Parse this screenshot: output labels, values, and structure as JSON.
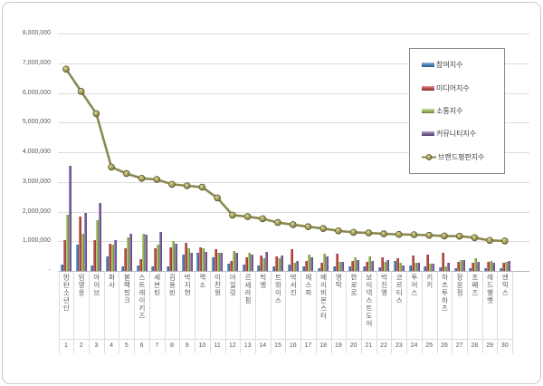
{
  "window": {
    "background": "#ffffff",
    "frame_border_color": "#c9c9c9"
  },
  "chart_data": {
    "type": "bar",
    "subtype": "grouped-bars-with-line-overlay",
    "title": "",
    "grid": true,
    "legend_position": "top-right",
    "categories": [
      "방탄소년단",
      "임영웅",
      "아이브",
      "화사",
      "블랙핑크",
      "스트레이키즈",
      "세븐틴",
      "김용빈",
      "박지현",
      "엑소",
      "이찬원",
      "아일릿",
      "르세라핌",
      "빅뱅",
      "트와이스",
      "박서진",
      "에스파",
      "베이비몬스터",
      "영탁",
      "한로로",
      "보이넥스트도어",
      "박진영",
      "코르티스",
      "투어스",
      "키키",
      "하츠투하츠",
      "장윤정",
      "조째즈",
      "레드벨벳",
      "엔믹스"
    ],
    "category_ranks": [
      "1",
      "2",
      "3",
      "4",
      "5",
      "6",
      "7",
      "8",
      "9",
      "10",
      "11",
      "12",
      "13",
      "14",
      "15",
      "16",
      "17",
      "18",
      "19",
      "20",
      "21",
      "22",
      "23",
      "24",
      "25",
      "26",
      "27",
      "28",
      "29",
      "30"
    ],
    "y_axis": {
      "min": 0,
      "max": 8000000,
      "step": 1000000,
      "ticks": [
        {
          "value": 8000000,
          "label": "8,000,000"
        },
        {
          "value": 7000000,
          "label": "7,000,000"
        },
        {
          "value": 6000000,
          "label": "6,000,000"
        },
        {
          "value": 5000000,
          "label": "5,000,000"
        },
        {
          "value": 4000000,
          "label": "4,000,000"
        },
        {
          "value": 3000000,
          "label": "3,000,000"
        },
        {
          "value": 2000000,
          "label": "2,000,000"
        },
        {
          "value": 1000000,
          "label": "1,000,000"
        },
        {
          "value": 0,
          "label": "-"
        }
      ]
    },
    "series": [
      {
        "name": "참여지수",
        "type": "bar",
        "color": "#4F81BD",
        "values": [
          220000,
          900000,
          180000,
          480000,
          140000,
          190000,
          160000,
          150000,
          550000,
          620000,
          450000,
          240000,
          220000,
          180000,
          160000,
          220000,
          150000,
          100000,
          160000,
          140000,
          140000,
          120000,
          340000,
          180000,
          160000,
          120000,
          100000,
          80000,
          100000,
          80000
        ]
      },
      {
        "name": "미디어지수",
        "type": "bar",
        "color": "#C0504D",
        "values": [
          1050000,
          1820000,
          1030000,
          920000,
          750000,
          400000,
          760000,
          800000,
          950000,
          800000,
          720000,
          340000,
          460000,
          520000,
          500000,
          720000,
          340000,
          260000,
          580000,
          340000,
          320000,
          460000,
          440000,
          520000,
          550000,
          620000,
          320000,
          280000,
          320000,
          260000
        ]
      },
      {
        "name": "소통지수",
        "type": "bar",
        "color": "#9BBB59",
        "values": [
          1900000,
          1250000,
          1720000,
          900000,
          1120000,
          1250000,
          900000,
          1020000,
          750000,
          750000,
          620000,
          680000,
          600000,
          420000,
          440000,
          280000,
          540000,
          580000,
          300000,
          460000,
          480000,
          300000,
          260000,
          260000,
          240000,
          160000,
          380000,
          440000,
          340000,
          320000
        ]
      },
      {
        "name": "커뮤니티지수",
        "type": "bar",
        "color": "#8064A2",
        "values": [
          3550000,
          1950000,
          2300000,
          1050000,
          1240000,
          1220000,
          1320000,
          920000,
          620000,
          650000,
          620000,
          620000,
          550000,
          640000,
          530000,
          340000,
          460000,
          490000,
          310000,
          360000,
          340000,
          370000,
          190000,
          260000,
          250000,
          280000,
          370000,
          320000,
          270000,
          350000
        ]
      },
      {
        "name": "브랜드평판지수",
        "type": "line",
        "color": "#8A8A50",
        "marker_fill": "#B3AA62",
        "marker_edge": "#55552F",
        "values": [
          6800000,
          6050000,
          5300000,
          3500000,
          3280000,
          3120000,
          3080000,
          2920000,
          2870000,
          2820000,
          2460000,
          1880000,
          1830000,
          1760000,
          1630000,
          1560000,
          1490000,
          1430000,
          1350000,
          1300000,
          1280000,
          1250000,
          1230000,
          1220000,
          1200000,
          1180000,
          1170000,
          1120000,
          1030000,
          1010000
        ]
      }
    ]
  }
}
